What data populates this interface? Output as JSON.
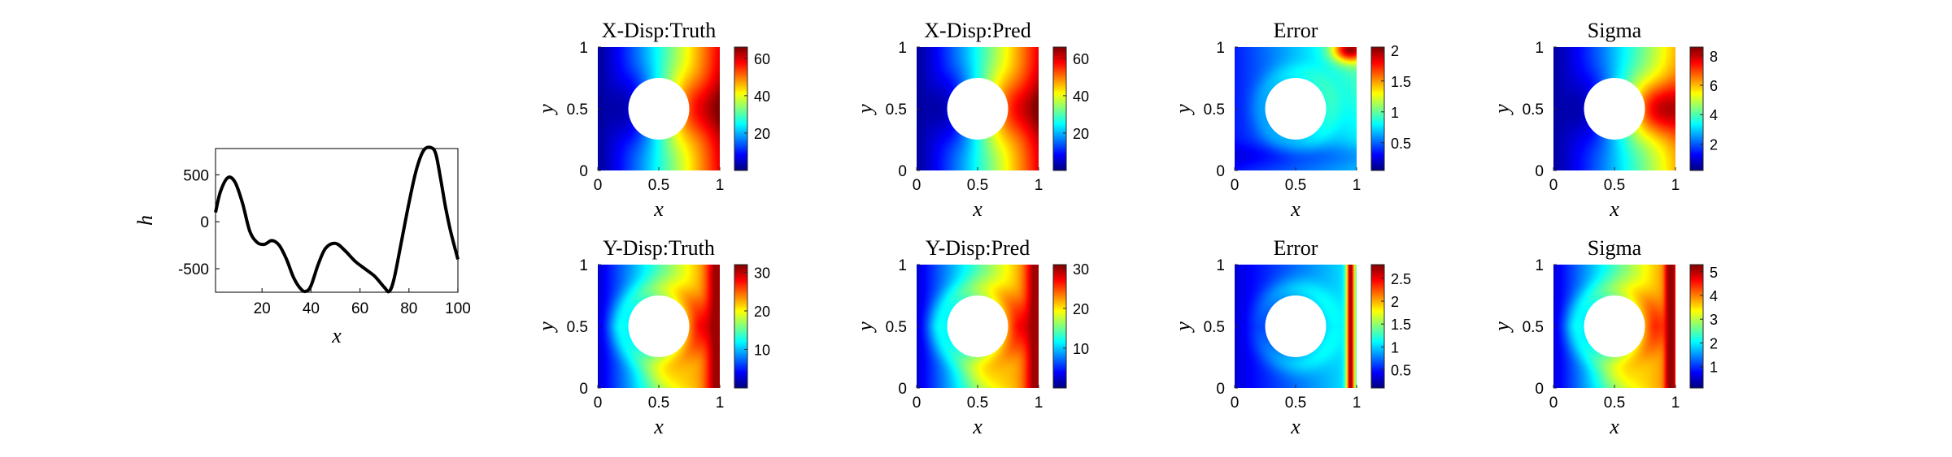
{
  "chart_data": [
    {
      "type": "line",
      "xlabel": "x",
      "ylabel": "h",
      "xlim": [
        1,
        100
      ],
      "ylim": [
        -750,
        780
      ],
      "xticks": [
        20,
        40,
        60,
        80,
        100
      ],
      "yticks": [
        500,
        0,
        -500
      ],
      "line_color": "#000000",
      "x": [
        1,
        3,
        6,
        9,
        12,
        15,
        18,
        21,
        24,
        27,
        30,
        33,
        36,
        38,
        40,
        43,
        46,
        50,
        54,
        58,
        62,
        66,
        70,
        72,
        74,
        77,
        80,
        83,
        86,
        89,
        91,
        93,
        95,
        97,
        100
      ],
      "values": [
        100,
        320,
        470,
        420,
        200,
        -100,
        -220,
        -240,
        -200,
        -250,
        -400,
        -600,
        -720,
        -740,
        -680,
        -450,
        -280,
        -230,
        -310,
        -420,
        -500,
        -580,
        -700,
        -740,
        -600,
        -200,
        200,
        550,
        760,
        790,
        720,
        450,
        150,
        -100,
        -400
      ]
    },
    {
      "type": "heatmap",
      "title": "X-Disp:Truth",
      "xlabel": "x",
      "ylabel": "y",
      "xlim": [
        0,
        1
      ],
      "ylim": [
        0,
        1
      ],
      "xticks": [
        0,
        0.5,
        1
      ],
      "yticks": [
        0,
        0.5,
        1
      ],
      "colormap": "jet",
      "clim": [
        0,
        66
      ],
      "cbar_ticks": [
        20,
        40,
        60
      ],
      "hole": {
        "center": [
          0.5,
          0.5
        ],
        "radius": 0.25
      },
      "field": {
        "kind": "x",
        "low": 2,
        "high": 64,
        "hotspot": [
          0.97,
          0.5
        ],
        "hotspot_value": 66
      }
    },
    {
      "type": "heatmap",
      "title": "X-Disp:Pred",
      "xlabel": "x",
      "ylabel": "y",
      "xlim": [
        0,
        1
      ],
      "ylim": [
        0,
        1
      ],
      "xticks": [
        0,
        0.5,
        1
      ],
      "yticks": [
        0,
        0.5,
        1
      ],
      "colormap": "jet",
      "clim": [
        0,
        66
      ],
      "cbar_ticks": [
        20,
        40,
        60
      ],
      "hole": {
        "center": [
          0.5,
          0.5
        ],
        "radius": 0.25
      },
      "field": {
        "kind": "x",
        "low": 2,
        "high": 64,
        "hotspot": [
          0.97,
          0.5
        ],
        "hotspot_value": 66
      }
    },
    {
      "type": "heatmap",
      "title": "Error",
      "xlabel": "x",
      "ylabel": "y",
      "xlim": [
        0,
        1
      ],
      "ylim": [
        0,
        1
      ],
      "xticks": [
        0,
        0.5,
        1
      ],
      "yticks": [
        0,
        0.5,
        1
      ],
      "colormap": "jet",
      "clim": [
        0.05,
        2.05
      ],
      "cbar_ticks": [
        0.5,
        1,
        1.5,
        2
      ],
      "cbar_tick_labels": [
        "0.5",
        "1",
        "1.5",
        "2"
      ],
      "hole": {
        "center": [
          0.5,
          0.5
        ],
        "radius": 0.25
      },
      "field": {
        "kind": "err1",
        "low": 0.2,
        "high": 1.2,
        "hotspot": [
          0.95,
          0.98
        ],
        "hotspot_value": 2.0
      }
    },
    {
      "type": "heatmap",
      "title": "Sigma",
      "xlabel": "x",
      "ylabel": "y",
      "xlim": [
        0,
        1
      ],
      "ylim": [
        0,
        1
      ],
      "xticks": [
        0,
        0.5,
        1
      ],
      "yticks": [
        0,
        0.5,
        1
      ],
      "colormap": "jet",
      "clim": [
        0.2,
        8.6
      ],
      "cbar_ticks": [
        2,
        4,
        6,
        8
      ],
      "hole": {
        "center": [
          0.5,
          0.5
        ],
        "radius": 0.25
      },
      "field": {
        "kind": "x",
        "low": 0.5,
        "high": 6.5,
        "hotspot": [
          0.9,
          0.5
        ],
        "hotspot_value": 8.4
      }
    },
    {
      "type": "heatmap",
      "title": "Y-Disp:Truth",
      "xlabel": "x",
      "ylabel": "y",
      "xlim": [
        0,
        1
      ],
      "ylim": [
        0,
        1
      ],
      "xticks": [
        0,
        0.5,
        1
      ],
      "yticks": [
        0,
        0.5,
        1
      ],
      "colormap": "jet",
      "clim": [
        0,
        32
      ],
      "cbar_ticks": [
        10,
        20,
        30
      ],
      "hole": {
        "center": [
          0.5,
          0.5
        ],
        "radius": 0.25
      },
      "field": {
        "kind": "y",
        "low": 1,
        "high": 31
      }
    },
    {
      "type": "heatmap",
      "title": "Y-Disp:Pred",
      "xlabel": "x",
      "ylabel": "y",
      "xlim": [
        0,
        1
      ],
      "ylim": [
        0,
        1
      ],
      "xticks": [
        0,
        0.5,
        1
      ],
      "yticks": [
        0,
        0.5,
        1
      ],
      "colormap": "jet",
      "clim": [
        0,
        31
      ],
      "cbar_ticks": [
        10,
        20,
        30
      ],
      "hole": {
        "center": [
          0.5,
          0.5
        ],
        "radius": 0.25
      },
      "field": {
        "kind": "y",
        "low": 1,
        "high": 30
      }
    },
    {
      "type": "heatmap",
      "title": "Error",
      "xlabel": "x",
      "ylabel": "y",
      "xlim": [
        0,
        1
      ],
      "ylim": [
        0,
        1
      ],
      "xticks": [
        0,
        0.5,
        1
      ],
      "yticks": [
        0,
        0.5,
        1
      ],
      "colormap": "jet",
      "clim": [
        0.1,
        2.8
      ],
      "cbar_ticks": [
        0.5,
        1,
        1.5,
        2,
        2.5
      ],
      "cbar_tick_labels": [
        "0.5",
        "1",
        "1.5",
        "2",
        "2.5"
      ],
      "hole": {
        "center": [
          0.5,
          0.5
        ],
        "radius": 0.25
      },
      "field": {
        "kind": "err2",
        "low": 0.2,
        "high": 1.5,
        "stripe_value": 2.7
      }
    },
    {
      "type": "heatmap",
      "title": "Sigma",
      "xlabel": "x",
      "ylabel": "y",
      "xlim": [
        0,
        1
      ],
      "ylim": [
        0,
        1
      ],
      "xticks": [
        0,
        0.5,
        1
      ],
      "yticks": [
        0,
        0.5,
        1
      ],
      "colormap": "jet",
      "clim": [
        0.1,
        5.3
      ],
      "cbar_ticks": [
        1,
        2,
        3,
        4,
        5
      ],
      "hole": {
        "center": [
          0.5,
          0.5
        ],
        "radius": 0.25
      },
      "field": {
        "kind": "y",
        "low": 0.3,
        "high": 5.0,
        "stripe_value": 5.2
      }
    }
  ]
}
